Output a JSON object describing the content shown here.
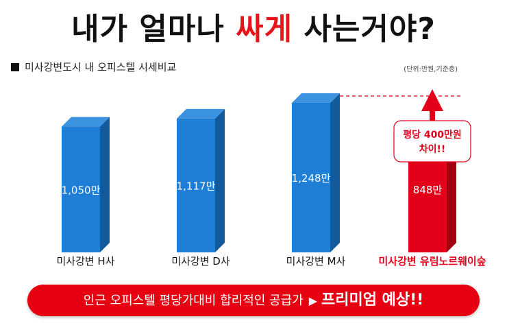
{
  "headline": {
    "part1": "내가 얼마나 ",
    "highlight": "싸게",
    "part2": " 사는거야?"
  },
  "chart_title": "미사강변도시 내 오피스텔 시세비교",
  "unit_note": "(단위:만원,기준층)",
  "chart_data": {
    "type": "bar",
    "categories": [
      "미사강변 H사",
      "미사강변 D사",
      "미사강변 M사",
      "미사강변 유림노르웨이숲"
    ],
    "values": [
      1050,
      1117,
      1248,
      848
    ],
    "value_labels": [
      "1,050만",
      "1,117만",
      "1,248만",
      "848만"
    ],
    "colors": [
      "#1f7fd6",
      "#1f7fd6",
      "#1f7fd6",
      "#e3001b"
    ],
    "highlight_index": 3,
    "ylim": [
      0,
      1248
    ],
    "annotation": {
      "line1": "평당 400만원",
      "line2": "차이!!"
    }
  },
  "banner": {
    "text": "인근 오피스텔 평당가대비 합리적인 공급가",
    "arrow": "▶",
    "emphasis": "프리미엄 예상!!"
  }
}
